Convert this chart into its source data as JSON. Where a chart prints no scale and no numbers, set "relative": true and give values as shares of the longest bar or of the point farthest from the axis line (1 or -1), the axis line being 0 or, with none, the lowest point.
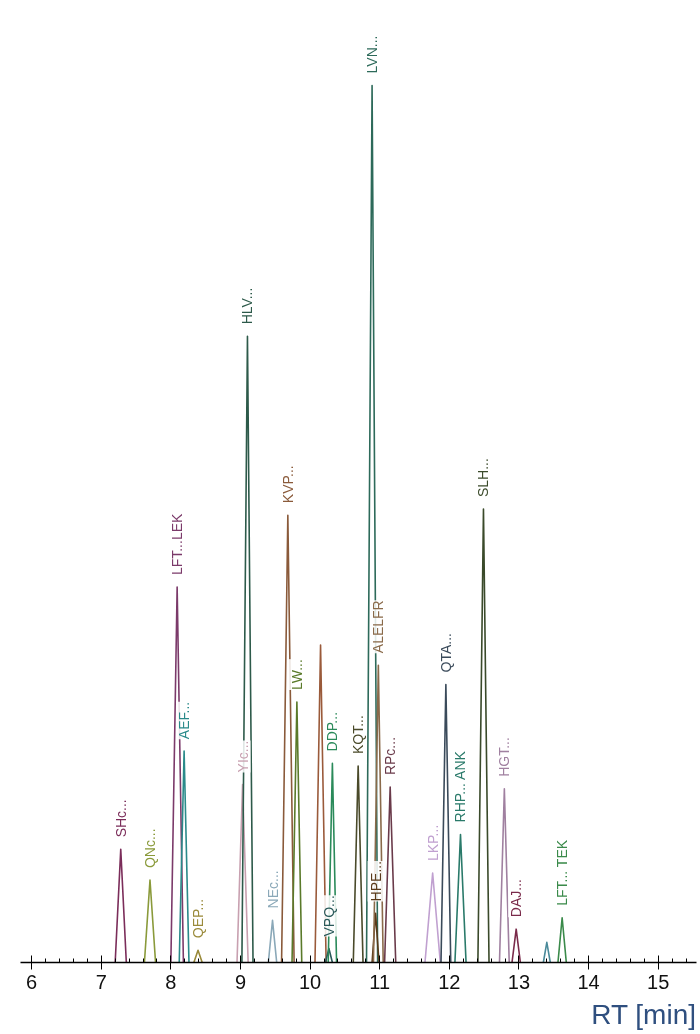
{
  "chart_data": {
    "type": "line",
    "relative": true,
    "xlabel": "RT [min]",
    "xlim": [
      5.84,
      15.55
    ],
    "xticks": [
      6,
      7,
      8,
      9,
      10,
      11,
      12,
      13,
      14,
      15
    ],
    "grid": false,
    "legend": false,
    "marker": "none",
    "line_style": "solid",
    "series": [
      {
        "name": "SHc...",
        "color": "#7b2d5a",
        "x": [
          7.2,
          7.28,
          7.36
        ],
        "values": [
          0,
          0.129,
          0
        ]
      },
      {
        "name": "QNc...",
        "color": "#8a9a3a",
        "x": [
          7.62,
          7.7,
          7.78
        ],
        "values": [
          0,
          0.094,
          0
        ]
      },
      {
        "name": "LFT...LEK",
        "color": "#7b3a6a",
        "x": [
          8.0,
          8.09,
          8.18
        ],
        "values": [
          0,
          0.428,
          0
        ]
      },
      {
        "name": "AEF...",
        "color": "#2a8a8a",
        "x": [
          8.12,
          8.19,
          8.26
        ],
        "values": [
          0,
          0.241,
          0
        ]
      },
      {
        "name": "QEP...",
        "color": "#9a8a3a",
        "x": [
          8.33,
          8.39,
          8.45
        ],
        "values": [
          0,
          0.014,
          0
        ]
      },
      {
        "name": "YIc...",
        "color": "#c8a0b0",
        "x": [
          8.95,
          9.03,
          9.11
        ],
        "values": [
          0,
          0.203,
          0
        ]
      },
      {
        "name": "HLV...",
        "color": "#2d5a4a",
        "x": [
          9.02,
          9.1,
          9.18
        ],
        "values": [
          0,
          0.714,
          0
        ]
      },
      {
        "name": "NEc...",
        "color": "#8aa8b8",
        "x": [
          9.4,
          9.46,
          9.52
        ],
        "values": [
          0,
          0.048,
          0
        ]
      },
      {
        "name": "KVP...",
        "color": "#8a5a3a",
        "x": [
          9.59,
          9.68,
          9.77
        ],
        "values": [
          0,
          0.51,
          0
        ]
      },
      {
        "name": "LW...",
        "color": "#5a7a2a",
        "x": [
          9.74,
          9.81,
          9.88
        ],
        "values": [
          0,
          0.297,
          0
        ]
      },
      {
        "color": "#9a5a3a",
        "x": [
          10.07,
          10.15,
          10.23
        ],
        "values": [
          0,
          0.362,
          0
        ]
      },
      {
        "name": "VPQ...",
        "color": "#2a5a5a",
        "x": [
          10.22,
          10.27,
          10.32
        ],
        "values": [
          0,
          0.016,
          0
        ]
      },
      {
        "name": "DDP...",
        "color": "#2a8a5a",
        "x": [
          10.26,
          10.32,
          10.38
        ],
        "values": [
          0,
          0.227,
          0
        ]
      },
      {
        "name": "KQT...",
        "color": "#4a4a2a",
        "x": [
          10.62,
          10.69,
          10.76
        ],
        "values": [
          0,
          0.224,
          0
        ]
      },
      {
        "name": "LVN...",
        "color": "#2d6a5a",
        "x": [
          10.81,
          10.89,
          10.97
        ],
        "values": [
          0,
          1.0,
          0
        ]
      },
      {
        "name": "HPE...",
        "color": "#5a3a1a",
        "x": [
          10.89,
          10.94,
          10.99
        ],
        "values": [
          0,
          0.056,
          0
        ]
      },
      {
        "name": "ALELFR",
        "color": "#8a6a4a",
        "x": [
          10.91,
          10.98,
          11.05
        ],
        "values": [
          0,
          0.339,
          0
        ]
      },
      {
        "name": "RPc...",
        "color": "#6a3a4a",
        "x": [
          11.07,
          11.15,
          11.23
        ],
        "values": [
          0,
          0.2,
          0
        ]
      },
      {
        "name": "LKP...",
        "color": "#c0a0d0",
        "x": [
          11.65,
          11.76,
          11.87
        ],
        "values": [
          0,
          0.102,
          0
        ]
      },
      {
        "name": "QTA...",
        "color": "#3a4a5a",
        "x": [
          11.88,
          11.95,
          12.02
        ],
        "values": [
          0,
          0.317,
          0
        ]
      },
      {
        "name": "RHP... ANK",
        "color": "#2a7a6a",
        "x": [
          12.08,
          12.16,
          12.24
        ],
        "values": [
          0,
          0.146,
          0
        ]
      },
      {
        "name": "SLH...",
        "color": "#3a4a2a",
        "x": [
          12.41,
          12.49,
          12.57
        ],
        "values": [
          0,
          0.517,
          0
        ]
      },
      {
        "name": "HGT...",
        "color": "#a080a0",
        "x": [
          12.72,
          12.79,
          12.86
        ],
        "values": [
          0,
          0.198,
          0
        ]
      },
      {
        "name": "DAJ...",
        "color": "#7a2a4a",
        "x": [
          12.9,
          12.96,
          13.02
        ],
        "values": [
          0,
          0.038,
          0
        ]
      },
      {
        "color": "#4a8a9a",
        "x": [
          13.35,
          13.4,
          13.45
        ],
        "values": [
          0,
          0.023,
          0
        ]
      },
      {
        "name": "LFT... TEK",
        "color": "#3a8a4a",
        "x": [
          13.56,
          13.62,
          13.68
        ],
        "values": [
          0,
          0.051,
          0
        ]
      }
    ]
  }
}
